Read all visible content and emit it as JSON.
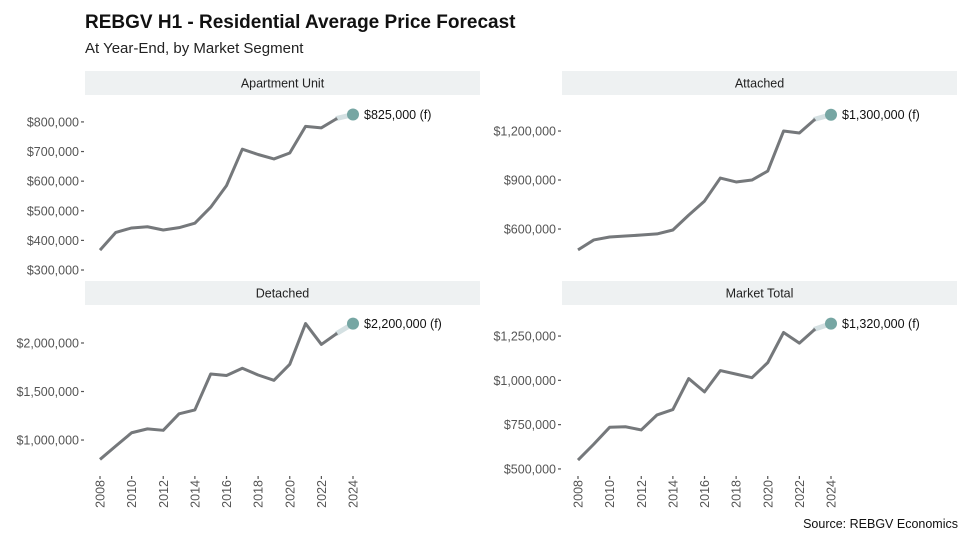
{
  "title": "REBGV H1 - Residential Average Price Forecast",
  "subtitle": "At Year-End, by Market Segment",
  "source": "Source: REBGV Economics",
  "colors": {
    "line": "#75787b",
    "forecast_point": "#76a6a3",
    "forecast_link": "#d4e0e2",
    "strip": "#eef1f2"
  },
  "chart_data": [
    {
      "type": "line",
      "panel": "Apartment Unit",
      "x": [
        2008,
        2009,
        2010,
        2011,
        2012,
        2013,
        2014,
        2015,
        2016,
        2017,
        2018,
        2019,
        2020,
        2021,
        2022,
        2023,
        2024
      ],
      "values": [
        367000,
        427000,
        442000,
        446000,
        435000,
        443000,
        458000,
        512000,
        585000,
        708000,
        690000,
        675000,
        695000,
        785000,
        780000,
        812000,
        825000
      ],
      "forecast_label": "$825,000 (f)",
      "yticks": [
        300000,
        400000,
        500000,
        600000,
        700000,
        800000
      ],
      "ytick_labels": [
        "$300,000",
        "$400,000",
        "$500,000",
        "$600,000",
        "$700,000",
        "$800,000"
      ],
      "ylim": [
        273000,
        874000
      ]
    },
    {
      "type": "line",
      "panel": "Attached",
      "x": [
        2008,
        2009,
        2010,
        2011,
        2012,
        2013,
        2014,
        2015,
        2016,
        2017,
        2018,
        2019,
        2020,
        2021,
        2022,
        2023,
        2024
      ],
      "values": [
        472000,
        533000,
        551000,
        557000,
        563000,
        570000,
        594000,
        685000,
        771000,
        912000,
        888000,
        900000,
        955000,
        1200000,
        1188000,
        1273000,
        1300000
      ],
      "forecast_label": "$1,300,000 (f)",
      "yticks": [
        600000,
        900000,
        1200000
      ],
      "ytick_labels": [
        "$600,000",
        "$900,000",
        "$1,200,000"
      ],
      "ylim": [
        300000,
        1390000
      ]
    },
    {
      "type": "line",
      "panel": "Detached",
      "x": [
        2008,
        2009,
        2010,
        2011,
        2012,
        2013,
        2014,
        2015,
        2016,
        2017,
        2018,
        2019,
        2020,
        2021,
        2022,
        2023,
        2024
      ],
      "values": [
        800000,
        938000,
        1075000,
        1115000,
        1100000,
        1270000,
        1310000,
        1680000,
        1665000,
        1740000,
        1670000,
        1615000,
        1780000,
        2200000,
        1985000,
        2100000,
        2200000
      ],
      "forecast_label": "$2,200,000 (f)",
      "yticks": [
        1000000,
        1500000,
        2000000
      ],
      "ytick_labels": [
        "$1,000,000",
        "$1,500,000",
        "$2,000,000"
      ],
      "ylim": [
        691000,
        2340000
      ]
    },
    {
      "type": "line",
      "panel": "Market Total",
      "x": [
        2008,
        2009,
        2010,
        2011,
        2012,
        2013,
        2014,
        2015,
        2016,
        2017,
        2018,
        2019,
        2020,
        2021,
        2022,
        2023,
        2024
      ],
      "values": [
        550000,
        640000,
        735000,
        738000,
        720000,
        805000,
        835000,
        1010000,
        935000,
        1055000,
        1035000,
        1015000,
        1100000,
        1270000,
        1210000,
        1290000,
        1320000
      ],
      "forecast_label": "$1,320,000 (f)",
      "yticks": [
        500000,
        750000,
        1000000,
        1250000
      ],
      "ytick_labels": [
        "$500,000",
        "$750,000",
        "$1,000,000",
        "$1,250,000"
      ],
      "ylim": [
        494000,
        1397000
      ]
    }
  ],
  "xticks": [
    2008,
    2010,
    2012,
    2014,
    2016,
    2018,
    2020,
    2022,
    2024
  ],
  "xtick_labels": [
    "2008",
    "2010",
    "2012",
    "2014",
    "2016",
    "2018",
    "2020",
    "2022",
    "2024"
  ]
}
